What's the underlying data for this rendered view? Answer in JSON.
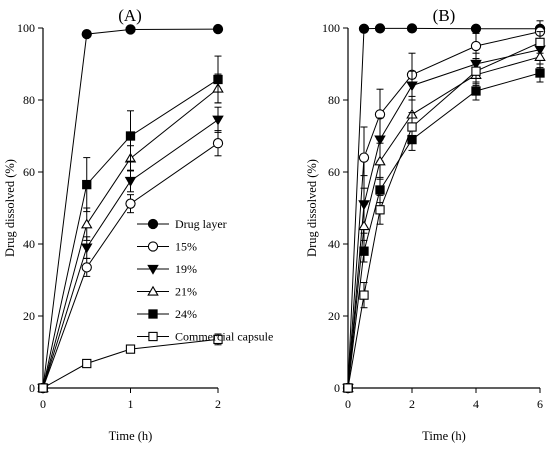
{
  "chart_data": [
    {
      "type": "line",
      "panel_label": "(A)",
      "xlabel": "Time (h)",
      "ylabel": "Drug dissolved (%)",
      "xlim": [
        0,
        2
      ],
      "ylim": [
        0,
        100
      ],
      "xticks": [
        0,
        1,
        2
      ],
      "yticks": [
        0,
        20,
        40,
        60,
        80,
        100
      ],
      "legend": "inside-right",
      "series": [
        {
          "name": "Drug layer",
          "marker": "filled-circle",
          "x": [
            0,
            0.5,
            1,
            2
          ],
          "y": [
            0,
            98.3,
            99.6,
            99.7
          ],
          "err": [
            0,
            0.5,
            0.4,
            0.4
          ]
        },
        {
          "name": "15%",
          "marker": "open-circle",
          "x": [
            0,
            0.5,
            1,
            2
          ],
          "y": [
            0,
            33.5,
            51.2,
            68.0
          ],
          "err": [
            0,
            2.5,
            2.5,
            3.5
          ]
        },
        {
          "name": "19%",
          "marker": "filled-triangle-down",
          "x": [
            0,
            0.5,
            1,
            2
          ],
          "y": [
            0,
            39.0,
            57.5,
            74.5
          ],
          "err": [
            0,
            3.0,
            3.0,
            3.5
          ]
        },
        {
          "name": "21%",
          "marker": "open-triangle-up",
          "x": [
            0,
            0.5,
            1,
            2
          ],
          "y": [
            0,
            45.5,
            63.8,
            83.2
          ],
          "err": [
            0,
            4.5,
            3.5,
            4.0
          ]
        },
        {
          "name": "24%",
          "marker": "filled-square",
          "x": [
            0,
            0.5,
            1,
            2
          ],
          "y": [
            0,
            56.5,
            70.0,
            85.7
          ],
          "err": [
            0,
            7.5,
            7.0,
            6.5
          ]
        },
        {
          "name": "Commercial capsule",
          "marker": "open-square",
          "x": [
            0,
            0.5,
            1,
            2
          ],
          "y": [
            0,
            6.8,
            10.8,
            13.5
          ],
          "err": [
            0,
            0.8,
            1.0,
            1.5
          ]
        }
      ]
    },
    {
      "type": "line",
      "panel_label": "(B)",
      "xlabel": "Time (h)",
      "ylabel": "Drug dissolved (%)",
      "xlim": [
        0,
        6
      ],
      "ylim": [
        0,
        100
      ],
      "xticks": [
        0,
        2,
        4,
        6
      ],
      "yticks": [
        0,
        20,
        40,
        60,
        80,
        100
      ],
      "legend": "none",
      "series": [
        {
          "name": "Drug layer",
          "marker": "filled-circle",
          "x": [
            0,
            0.5,
            1,
            2,
            4,
            6
          ],
          "y": [
            0,
            99.8,
            99.9,
            99.9,
            99.8,
            99.8
          ],
          "err": [
            0,
            0.4,
            0.4,
            0.4,
            0.4,
            0.4
          ]
        },
        {
          "name": "15%",
          "marker": "open-circle",
          "x": [
            0,
            0.5,
            1,
            2,
            4,
            6
          ],
          "y": [
            0,
            64.0,
            76.0,
            87.0,
            95.0,
            99.0
          ],
          "err": [
            0,
            8.5,
            7.0,
            6.0,
            3.5,
            3.0
          ]
        },
        {
          "name": "19%",
          "marker": "filled-triangle-down",
          "x": [
            0,
            0.5,
            1,
            2,
            4,
            6
          ],
          "y": [
            0,
            51.0,
            69.0,
            84.0,
            90.0,
            94.0
          ],
          "err": [
            0,
            8.0,
            6.0,
            4.0,
            3.0,
            3.0
          ]
        },
        {
          "name": "21%",
          "marker": "open-triangle-up",
          "x": [
            0,
            0.5,
            1,
            2,
            4,
            6
          ],
          "y": [
            0,
            45.0,
            63.0,
            76.0,
            87.0,
            92.0
          ],
          "err": [
            0,
            6.0,
            5.0,
            4.0,
            3.0,
            3.0
          ]
        },
        {
          "name": "24%",
          "marker": "filled-square",
          "x": [
            0,
            0.5,
            1,
            2,
            4,
            6
          ],
          "y": [
            0,
            38.0,
            55.0,
            69.0,
            82.5,
            87.5
          ],
          "err": [
            0,
            3.0,
            3.5,
            3.0,
            2.5,
            2.5
          ]
        },
        {
          "name": "Commercial capsule",
          "marker": "open-square",
          "x": [
            0,
            0.5,
            1,
            2,
            4,
            6
          ],
          "y": [
            0,
            25.8,
            49.5,
            72.5,
            88.0,
            96.0
          ],
          "err": [
            0,
            3.5,
            4.0,
            4.0,
            3.5,
            3.0
          ]
        }
      ]
    }
  ]
}
